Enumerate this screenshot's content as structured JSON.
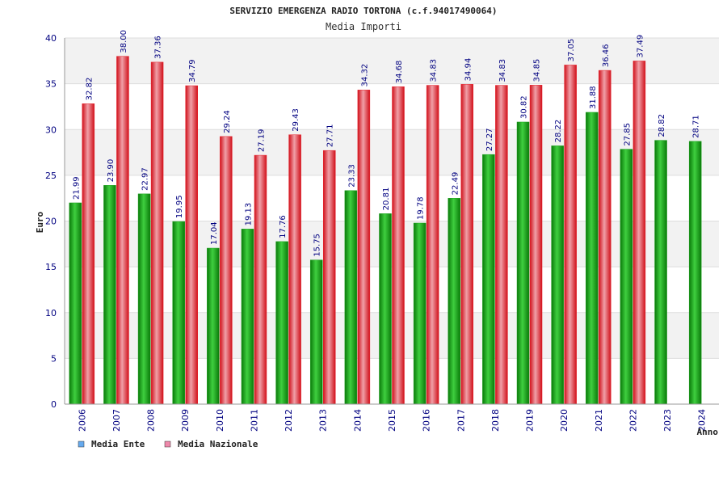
{
  "chart_data": {
    "type": "bar",
    "title": "SERVIZIO EMERGENZA RADIO TORTONA (c.f.94017490064)",
    "subtitle": "Media Importi",
    "ylabel": "Euro",
    "xlabel": "Anno",
    "ylim": [
      0,
      40
    ],
    "yticks": [
      0,
      5,
      10,
      15,
      20,
      25,
      30,
      35,
      40
    ],
    "categories": [
      "2006",
      "2007",
      "2008",
      "2009",
      "2010",
      "2011",
      "2012",
      "2013",
      "2014",
      "2015",
      "2016",
      "2017",
      "2018",
      "2019",
      "2020",
      "2021",
      "2022",
      "2023",
      "2024"
    ],
    "series": [
      {
        "name": "Media Ente",
        "color": "#1aa01a",
        "legend_color": "#66aaee",
        "values": [
          21.99,
          23.9,
          22.97,
          19.95,
          17.04,
          19.13,
          17.76,
          15.75,
          23.33,
          20.81,
          19.78,
          22.49,
          27.27,
          30.82,
          28.22,
          31.88,
          27.85,
          28.82,
          28.71
        ],
        "labels": [
          "21.99",
          "23.90",
          "22.97",
          "19.95",
          "17.04",
          "19.13",
          "17.76",
          "15.75",
          "23.33",
          "20.81",
          "19.78",
          "22.49",
          "27.27",
          "30.82",
          "28.22",
          "31.88",
          "27.85",
          "28.82",
          "28.71"
        ]
      },
      {
        "name": "Media Nazionale",
        "color": "#e8202a",
        "legend_color": "#ee88aa",
        "values": [
          32.82,
          38.0,
          37.36,
          34.79,
          29.24,
          27.19,
          29.43,
          27.71,
          34.32,
          34.68,
          34.83,
          34.94,
          34.83,
          34.85,
          37.05,
          36.46,
          37.49,
          null,
          null
        ],
        "labels": [
          "32.82",
          "38.00",
          "37.36",
          "34.79",
          "29.24",
          "27.19",
          "29.43",
          "27.71",
          "34.32",
          "34.68",
          "34.83",
          "34.94",
          "34.83",
          "34.85",
          "37.05",
          "36.46",
          "37.49",
          "",
          ""
        ]
      }
    ],
    "grid": true,
    "legend_position": "bottom-left"
  }
}
